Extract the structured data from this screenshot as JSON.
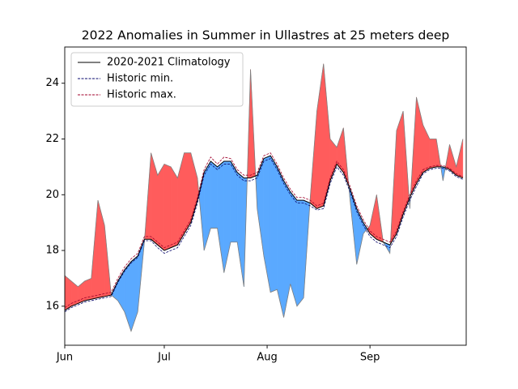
{
  "chart_data": {
    "type": "line",
    "title": "2022 Anomalies in Summer in Ullastres at 25 meters deep",
    "x": [
      0,
      2,
      4,
      6,
      8,
      10,
      12,
      14,
      16,
      18,
      20,
      22,
      24,
      26,
      28,
      30,
      32,
      34,
      36,
      38,
      40,
      42,
      44,
      46,
      48,
      50,
      52,
      54,
      56,
      58,
      60,
      62,
      64,
      66,
      68,
      70,
      72,
      74,
      76,
      78,
      80,
      82,
      84,
      86,
      88,
      90,
      92,
      94,
      96,
      98,
      100,
      102,
      104,
      106,
      108,
      110,
      112,
      114,
      116,
      118,
      120
    ],
    "xlim": [
      0,
      121
    ],
    "xticks": [
      {
        "value": 0,
        "label": "Jun"
      },
      {
        "value": 30,
        "label": "Jul"
      },
      {
        "value": 61,
        "label": "Aug"
      },
      {
        "value": 92,
        "label": "Sep"
      }
    ],
    "ylim": [
      14.6,
      25.3
    ],
    "yticks": [
      16,
      18,
      20,
      22,
      24
    ],
    "legend": "upper left",
    "series": [
      {
        "name": "2020-2021 Climatology",
        "color": "#000000",
        "dashed": false,
        "values": [
          15.85,
          16.0,
          16.1,
          16.2,
          16.25,
          16.3,
          16.35,
          16.4,
          16.9,
          17.3,
          17.6,
          17.8,
          18.4,
          18.4,
          18.2,
          18.0,
          18.1,
          18.2,
          18.6,
          19.0,
          19.8,
          20.8,
          21.2,
          21.0,
          21.2,
          21.2,
          20.8,
          20.6,
          20.6,
          20.7,
          21.3,
          21.4,
          21.0,
          20.5,
          20.1,
          19.8,
          19.8,
          19.7,
          19.5,
          19.6,
          20.5,
          21.1,
          20.8,
          20.2,
          19.5,
          19.0,
          18.6,
          18.4,
          18.3,
          18.2,
          18.6,
          19.3,
          19.9,
          20.4,
          20.8,
          20.95,
          21.0,
          21.0,
          20.9,
          20.7,
          20.6
        ]
      },
      {
        "name": "Historic min.",
        "color": "#0a0a6e",
        "dashed": true,
        "values": [
          15.8,
          15.95,
          16.05,
          16.15,
          16.2,
          16.25,
          16.3,
          16.35,
          16.85,
          17.25,
          17.55,
          17.75,
          18.35,
          18.35,
          18.1,
          17.9,
          18.0,
          18.1,
          18.5,
          18.9,
          19.7,
          20.7,
          21.1,
          20.9,
          21.1,
          21.1,
          20.7,
          20.5,
          20.5,
          20.6,
          21.2,
          21.3,
          20.9,
          20.4,
          20.0,
          19.7,
          19.7,
          19.6,
          19.45,
          19.5,
          20.4,
          21.0,
          20.7,
          20.1,
          19.4,
          18.9,
          18.5,
          18.3,
          18.2,
          18.1,
          18.5,
          19.2,
          19.8,
          20.3,
          20.75,
          20.9,
          20.95,
          20.95,
          20.85,
          20.65,
          20.55
        ]
      },
      {
        "name": "Historic max.",
        "color": "#a0002a",
        "dashed": true,
        "values": [
          15.95,
          16.1,
          16.2,
          16.3,
          16.35,
          16.4,
          16.45,
          16.5,
          17.0,
          17.4,
          17.7,
          17.9,
          18.5,
          18.5,
          18.3,
          18.1,
          18.2,
          18.3,
          18.7,
          19.1,
          19.9,
          20.9,
          21.35,
          21.1,
          21.35,
          21.3,
          20.9,
          20.7,
          20.7,
          20.8,
          21.4,
          21.5,
          21.1,
          20.6,
          20.2,
          19.9,
          19.9,
          19.8,
          19.6,
          19.7,
          20.6,
          21.2,
          20.9,
          20.3,
          19.6,
          19.1,
          18.7,
          18.5,
          18.4,
          18.3,
          18.7,
          19.4,
          20.0,
          20.5,
          20.9,
          21.0,
          21.05,
          21.05,
          20.95,
          20.75,
          20.65
        ]
      }
    ],
    "observed": {
      "above_color": "#ff5c5c",
      "below_color": "#5aa9ff",
      "edge_color": "#7f7f7f",
      "values": [
        17.1,
        16.9,
        16.7,
        16.9,
        17.0,
        19.8,
        18.9,
        16.4,
        16.2,
        15.8,
        15.1,
        15.8,
        18.3,
        21.5,
        20.7,
        21.1,
        21.0,
        20.6,
        21.5,
        21.5,
        20.6,
        18.0,
        18.8,
        18.8,
        17.2,
        18.3,
        18.3,
        16.7,
        24.5,
        19.5,
        17.8,
        16.5,
        16.6,
        15.6,
        16.8,
        16.0,
        16.3,
        19.9,
        23.0,
        24.7,
        22.0,
        21.7,
        22.4,
        19.8,
        17.5,
        18.6,
        18.9,
        20.0,
        18.3,
        17.9,
        22.3,
        23.0,
        19.5,
        23.5,
        22.5,
        22.0,
        22.0,
        20.5,
        21.8,
        21.0,
        22.0
      ]
    }
  }
}
